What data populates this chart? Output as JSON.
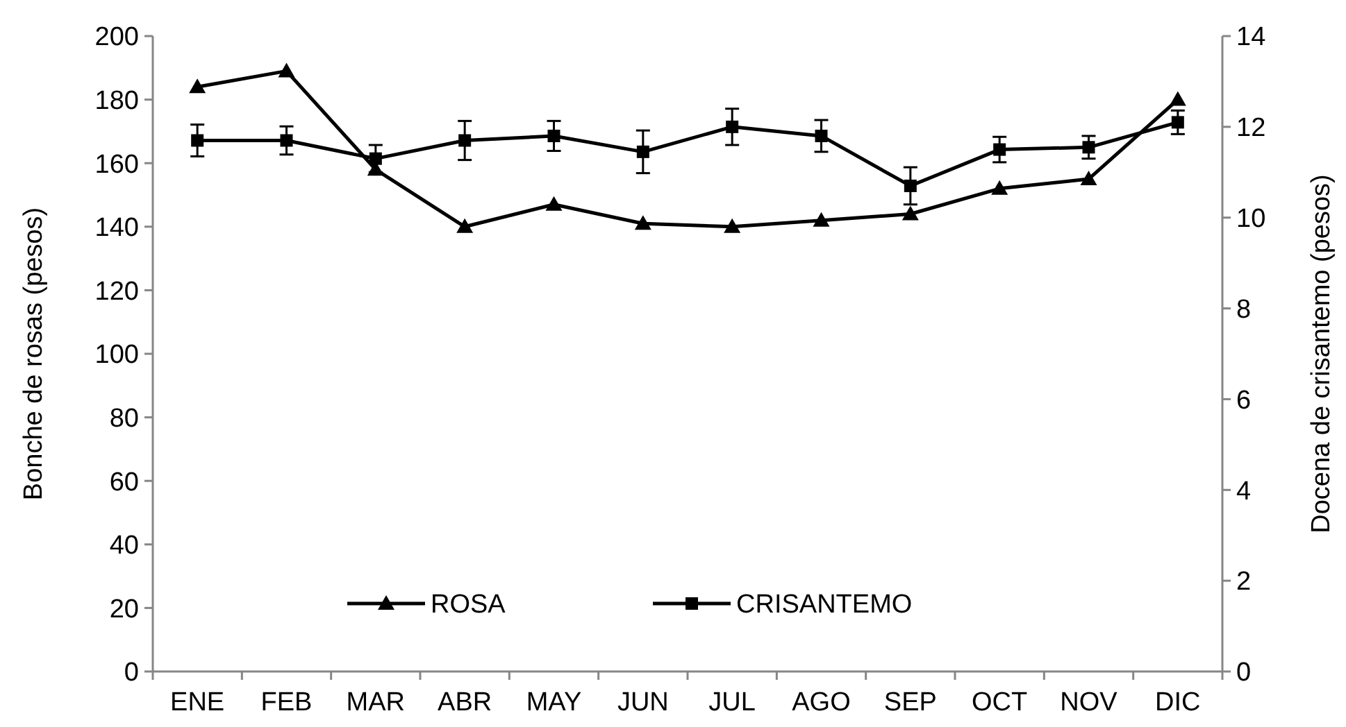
{
  "chart_data": {
    "type": "line",
    "ylabel": "Bonche de rosas (pesos)",
    "y2label": "Docena de crisantemo (pesos)",
    "categories": [
      "ENE",
      "FEB",
      "MAR",
      "ABR",
      "MAY",
      "JUN",
      "JUL",
      "AGO",
      "SEP",
      "OCT",
      "NOV",
      "DIC"
    ],
    "ylim": [
      0,
      200
    ],
    "yticks": [
      0,
      20,
      40,
      60,
      80,
      100,
      120,
      140,
      160,
      180,
      200
    ],
    "y2lim": [
      0,
      14
    ],
    "y2ticks": [
      0,
      2,
      4,
      6,
      8,
      10,
      12,
      14
    ],
    "legend": "bottom",
    "grid": false,
    "line_style": "solid",
    "series": [
      {
        "name": "ROSA",
        "color": "#000000",
        "marker": "triangle",
        "values": [
          184,
          189,
          158,
          140,
          147,
          141,
          140,
          142,
          144,
          152,
          155,
          180
        ]
      },
      {
        "name": "CRISANTEMO",
        "color": "#000000",
        "marker": "square",
        "axis": "y2",
        "values": [
          11.7,
          11.7,
          11.3,
          11.7,
          11.8,
          11.45,
          12.0,
          11.8,
          10.7,
          11.5,
          11.55,
          12.1
        ],
        "errors": [
          0.35,
          0.31,
          0.3,
          0.43,
          0.33,
          0.47,
          0.4,
          0.35,
          0.41,
          0.28,
          0.25,
          0.26
        ]
      }
    ]
  }
}
